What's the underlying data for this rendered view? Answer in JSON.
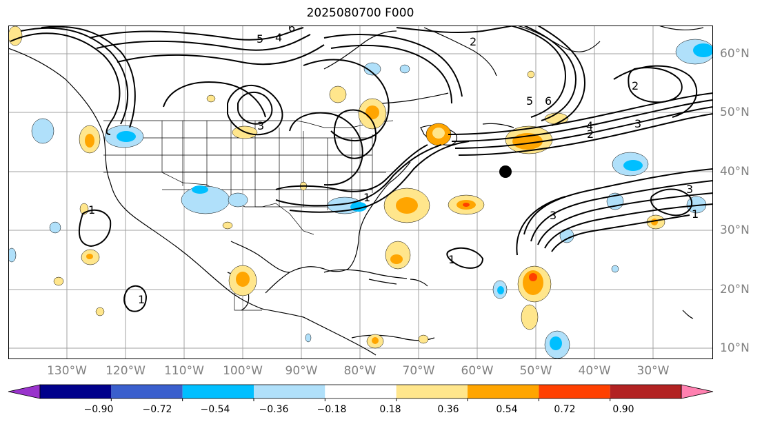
{
  "title": "2025080700 F000",
  "map": {
    "lon_labels": [
      "130°W",
      "120°W",
      "110°W",
      "100°W",
      "90°W",
      "80°W",
      "70°W",
      "60°W",
      "50°W",
      "40°W",
      "30°W"
    ],
    "lat_labels": [
      "60°N",
      "50°N",
      "40°N",
      "30°N",
      "20°N",
      "10°N"
    ],
    "lon_range": [
      -135,
      -15
    ],
    "lat_range": [
      8,
      65
    ],
    "contour_labels": [
      "1",
      "1",
      "1",
      "1",
      "1",
      "2",
      "2",
      "2",
      "3",
      "3",
      "3",
      "3",
      "4",
      "4",
      "5",
      "5",
      "6",
      "6"
    ],
    "marker": "black-dot"
  },
  "colorbar": {
    "ticks": [
      "−0.90",
      "−0.72",
      "−0.54",
      "−0.36",
      "−0.18",
      "0.18",
      "0.36",
      "0.54",
      "0.72",
      "0.90"
    ],
    "colors": [
      "#9933cc",
      "#00008b",
      "#3a5fcd",
      "#00bfff",
      "#b0e0fa",
      "#ffffff",
      "#ffe68c",
      "#ffa500",
      "#ff4000",
      "#b22222",
      "#ff80b0"
    ]
  }
}
